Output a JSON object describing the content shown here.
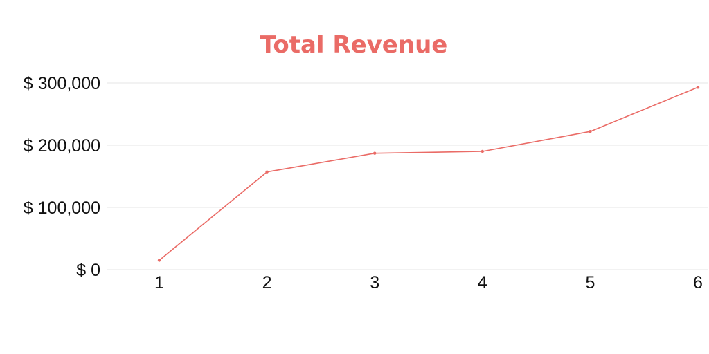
{
  "colors": {
    "title": "#ea6b66",
    "series": "#ea6b66"
  },
  "chart_data": {
    "type": "line",
    "title": "Total Revenue",
    "xlabel": "",
    "ylabel": "",
    "categories": [
      "1",
      "2",
      "3",
      "4",
      "5",
      "6"
    ],
    "y_tick_labels": [
      "$ 0",
      "$ 100,000",
      "$ 200,000",
      "$ 300,000"
    ],
    "y_ticks": [
      0,
      100000,
      200000,
      300000
    ],
    "ylim": [
      0,
      300000
    ],
    "grid": true,
    "legend": "none",
    "series": [
      {
        "values": [
          15000,
          157000,
          187000,
          190000,
          222000,
          293000
        ]
      }
    ]
  }
}
